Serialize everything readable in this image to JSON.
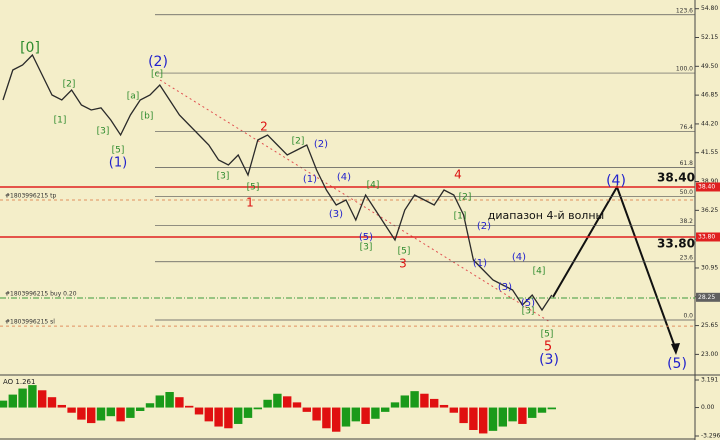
{
  "chart_data": [
    {
      "type": "line",
      "color": "#2a2a2a",
      "values": [
        46.4,
        49.16,
        49.62,
        50.54,
        48.7,
        46.86,
        46.4,
        47.32,
        45.94,
        45.48,
        45.67,
        44.56,
        43.18,
        45.02,
        46.4,
        46.86,
        47.78,
        46.4,
        45.02,
        44.1,
        43.18,
        42.26,
        40.88,
        40.42,
        41.34,
        39.5,
        42.72,
        43.18,
        42.26,
        41.34,
        41.8,
        42.26,
        39.96,
        38.12,
        36.74,
        37.2,
        35.36,
        37.66,
        36.28,
        34.9,
        33.52,
        36.28,
        37.66,
        37.2,
        36.74,
        38.12,
        37.66,
        35.82,
        31.68,
        30.76,
        29.84,
        29.38,
        28.92,
        27.54,
        28.46,
        27.08,
        28.46
      ],
      "ylim": [
        21.38,
        55.6
      ],
      "yticks": [
        {
          "value": 54.8,
          "label": "54.80"
        },
        52.15,
        {
          "value": 49.5,
          "label": "49.50"
        },
        46.85,
        {
          "value": 44.2,
          "label": "44.20"
        },
        41.55,
        {
          "value": 38.9,
          "label": "38.90"
        },
        36.25,
        {
          "value": 33.6,
          "label": "33.60"
        },
        30.95,
        {
          "value": 28.3,
          "label": "28.30"
        },
        25.65,
        {
          "value": 23,
          "label": "23.00"
        }
      ],
      "fib_levels": [
        {
          "value": 54.24,
          "label": "123.6"
        },
        {
          "value": 48.88,
          "label": "100.0"
        },
        {
          "value": 43.52,
          "label": "76.4"
        },
        {
          "value": 40.2,
          "label": "61.8"
        },
        {
          "value": 37.52,
          "label": "50.0"
        },
        {
          "value": 34.84,
          "label": "38.2"
        },
        {
          "value": 31.52,
          "label": "23.6"
        },
        {
          "value": 26.16,
          "label": "0.0"
        }
      ],
      "red_lines": [
        38.4,
        33.8
      ],
      "levels": [
        {
          "label": "#1803996215 tp",
          "value": 37.2,
          "color": "#e09060"
        },
        {
          "label": "#1803996215 buy 0.20",
          "value": 28.19,
          "color": "#3c9a3c"
        },
        {
          "label": "#1803996215 sl",
          "value": 25.6,
          "color": "#e09060"
        }
      ],
      "axis_markers": [
        {
          "value": 38.4,
          "label": "38.40",
          "color": "#e02020"
        },
        {
          "value": 33.8,
          "label": "33.80",
          "color": "#e02020"
        },
        {
          "value": 28.25,
          "label": "28.25",
          "color": "#606060"
        }
      ],
      "annotations": [
        {
          "text": "[0]",
          "color": "#2e8b2e"
        },
        {
          "text": "(2)",
          "color": "#2222cc"
        },
        {
          "text": "[c]",
          "color": "#2e8b2e"
        },
        {
          "text": "[2]",
          "color": "#2e8b2e"
        },
        {
          "text": "[1]",
          "color": "#2e8b2e"
        },
        {
          "text": "[a]",
          "color": "#2e8b2e"
        },
        {
          "text": "[b]",
          "color": "#2e8b2e"
        },
        {
          "text": "[3]",
          "color": "#2e8b2e"
        },
        {
          "text": "[5]",
          "color": "#2e8b2e"
        },
        {
          "text": "(1)",
          "color": "#2222cc"
        },
        {
          "text": "2",
          "color": "#dd1111"
        },
        {
          "text": "1",
          "color": "#dd1111"
        },
        {
          "text": "[2]",
          "color": "#2e8b2e"
        },
        {
          "text": "[3]",
          "color": "#2e8b2e"
        },
        {
          "text": "[5]",
          "color": "#2e8b2e"
        },
        {
          "text": "(2)",
          "color": "#2222cc"
        },
        {
          "text": "(1)",
          "color": "#2222cc"
        },
        {
          "text": "(4)",
          "color": "#2222cc"
        },
        {
          "text": "(3)",
          "color": "#2222cc"
        },
        {
          "text": "(5)",
          "color": "#2222cc"
        },
        {
          "text": "[4]",
          "color": "#2e8b2e"
        },
        {
          "text": "[3]",
          "color": "#2e8b2e"
        },
        {
          "text": "[5]",
          "color": "#2e8b2e"
        },
        {
          "text": "3",
          "color": "#dd1111"
        },
        {
          "text": "4",
          "color": "#dd1111"
        },
        {
          "text": "[2]",
          "color": "#2e8b2e"
        },
        {
          "text": "[1]",
          "color": "#2e8b2e"
        },
        {
          "text": "(2)",
          "color": "#2222cc"
        },
        {
          "text": "(1)",
          "color": "#2222cc"
        },
        {
          "text": "(4)",
          "color": "#2222cc"
        },
        {
          "text": "(3)",
          "color": "#2222cc"
        },
        {
          "text": "[4]",
          "color": "#2e8b2e"
        },
        {
          "text": "(5)",
          "color": "#2222cc"
        },
        {
          "text": "[3]",
          "color": "#2e8b2e"
        },
        {
          "text": "[5]",
          "color": "#2e8b2e"
        },
        {
          "text": "5",
          "color": "#dd1111"
        },
        {
          "text": "(3)",
          "color": "#2222cc"
        },
        {
          "text": "(4)",
          "color": "#2222cc"
        },
        {
          "text": "(5)",
          "color": "#2222cc"
        },
        {
          "text": "диапазон 4-й волны",
          "color": "#111111"
        },
        {
          "text": "38.40",
          "color": "#111111"
        },
        {
          "text": "33.80",
          "color": "#111111"
        }
      ]
    },
    {
      "type": "bar",
      "title": "AO 1.261",
      "up_color": "#1a9a1a",
      "down_color": "#e01010",
      "values": [
        0.8,
        1.5,
        2.2,
        2.6,
        2.0,
        1.2,
        0.3,
        -0.6,
        -1.4,
        -1.8,
        -1.5,
        -1.0,
        -1.6,
        -1.2,
        -0.4,
        0.5,
        1.4,
        1.8,
        1.2,
        0.2,
        -0.8,
        -1.6,
        -2.2,
        -2.4,
        -1.9,
        -1.2,
        -0.2,
        0.9,
        1.6,
        1.3,
        0.6,
        -0.5,
        -1.5,
        -2.4,
        -2.8,
        -2.2,
        -1.6,
        -1.9,
        -1.3,
        -0.5,
        0.6,
        1.4,
        1.9,
        1.6,
        1.0,
        0.3,
        -0.6,
        -1.8,
        -2.6,
        -3.0,
        -2.7,
        -2.2,
        -1.6,
        -1.9,
        -1.2,
        -0.6,
        -0.2
      ],
      "ylim": [
        -3.296,
        3.191
      ],
      "yticks": [
        3.191,
        {
          "value": 0,
          "label": "0.00"
        },
        -3.296
      ]
    }
  ]
}
